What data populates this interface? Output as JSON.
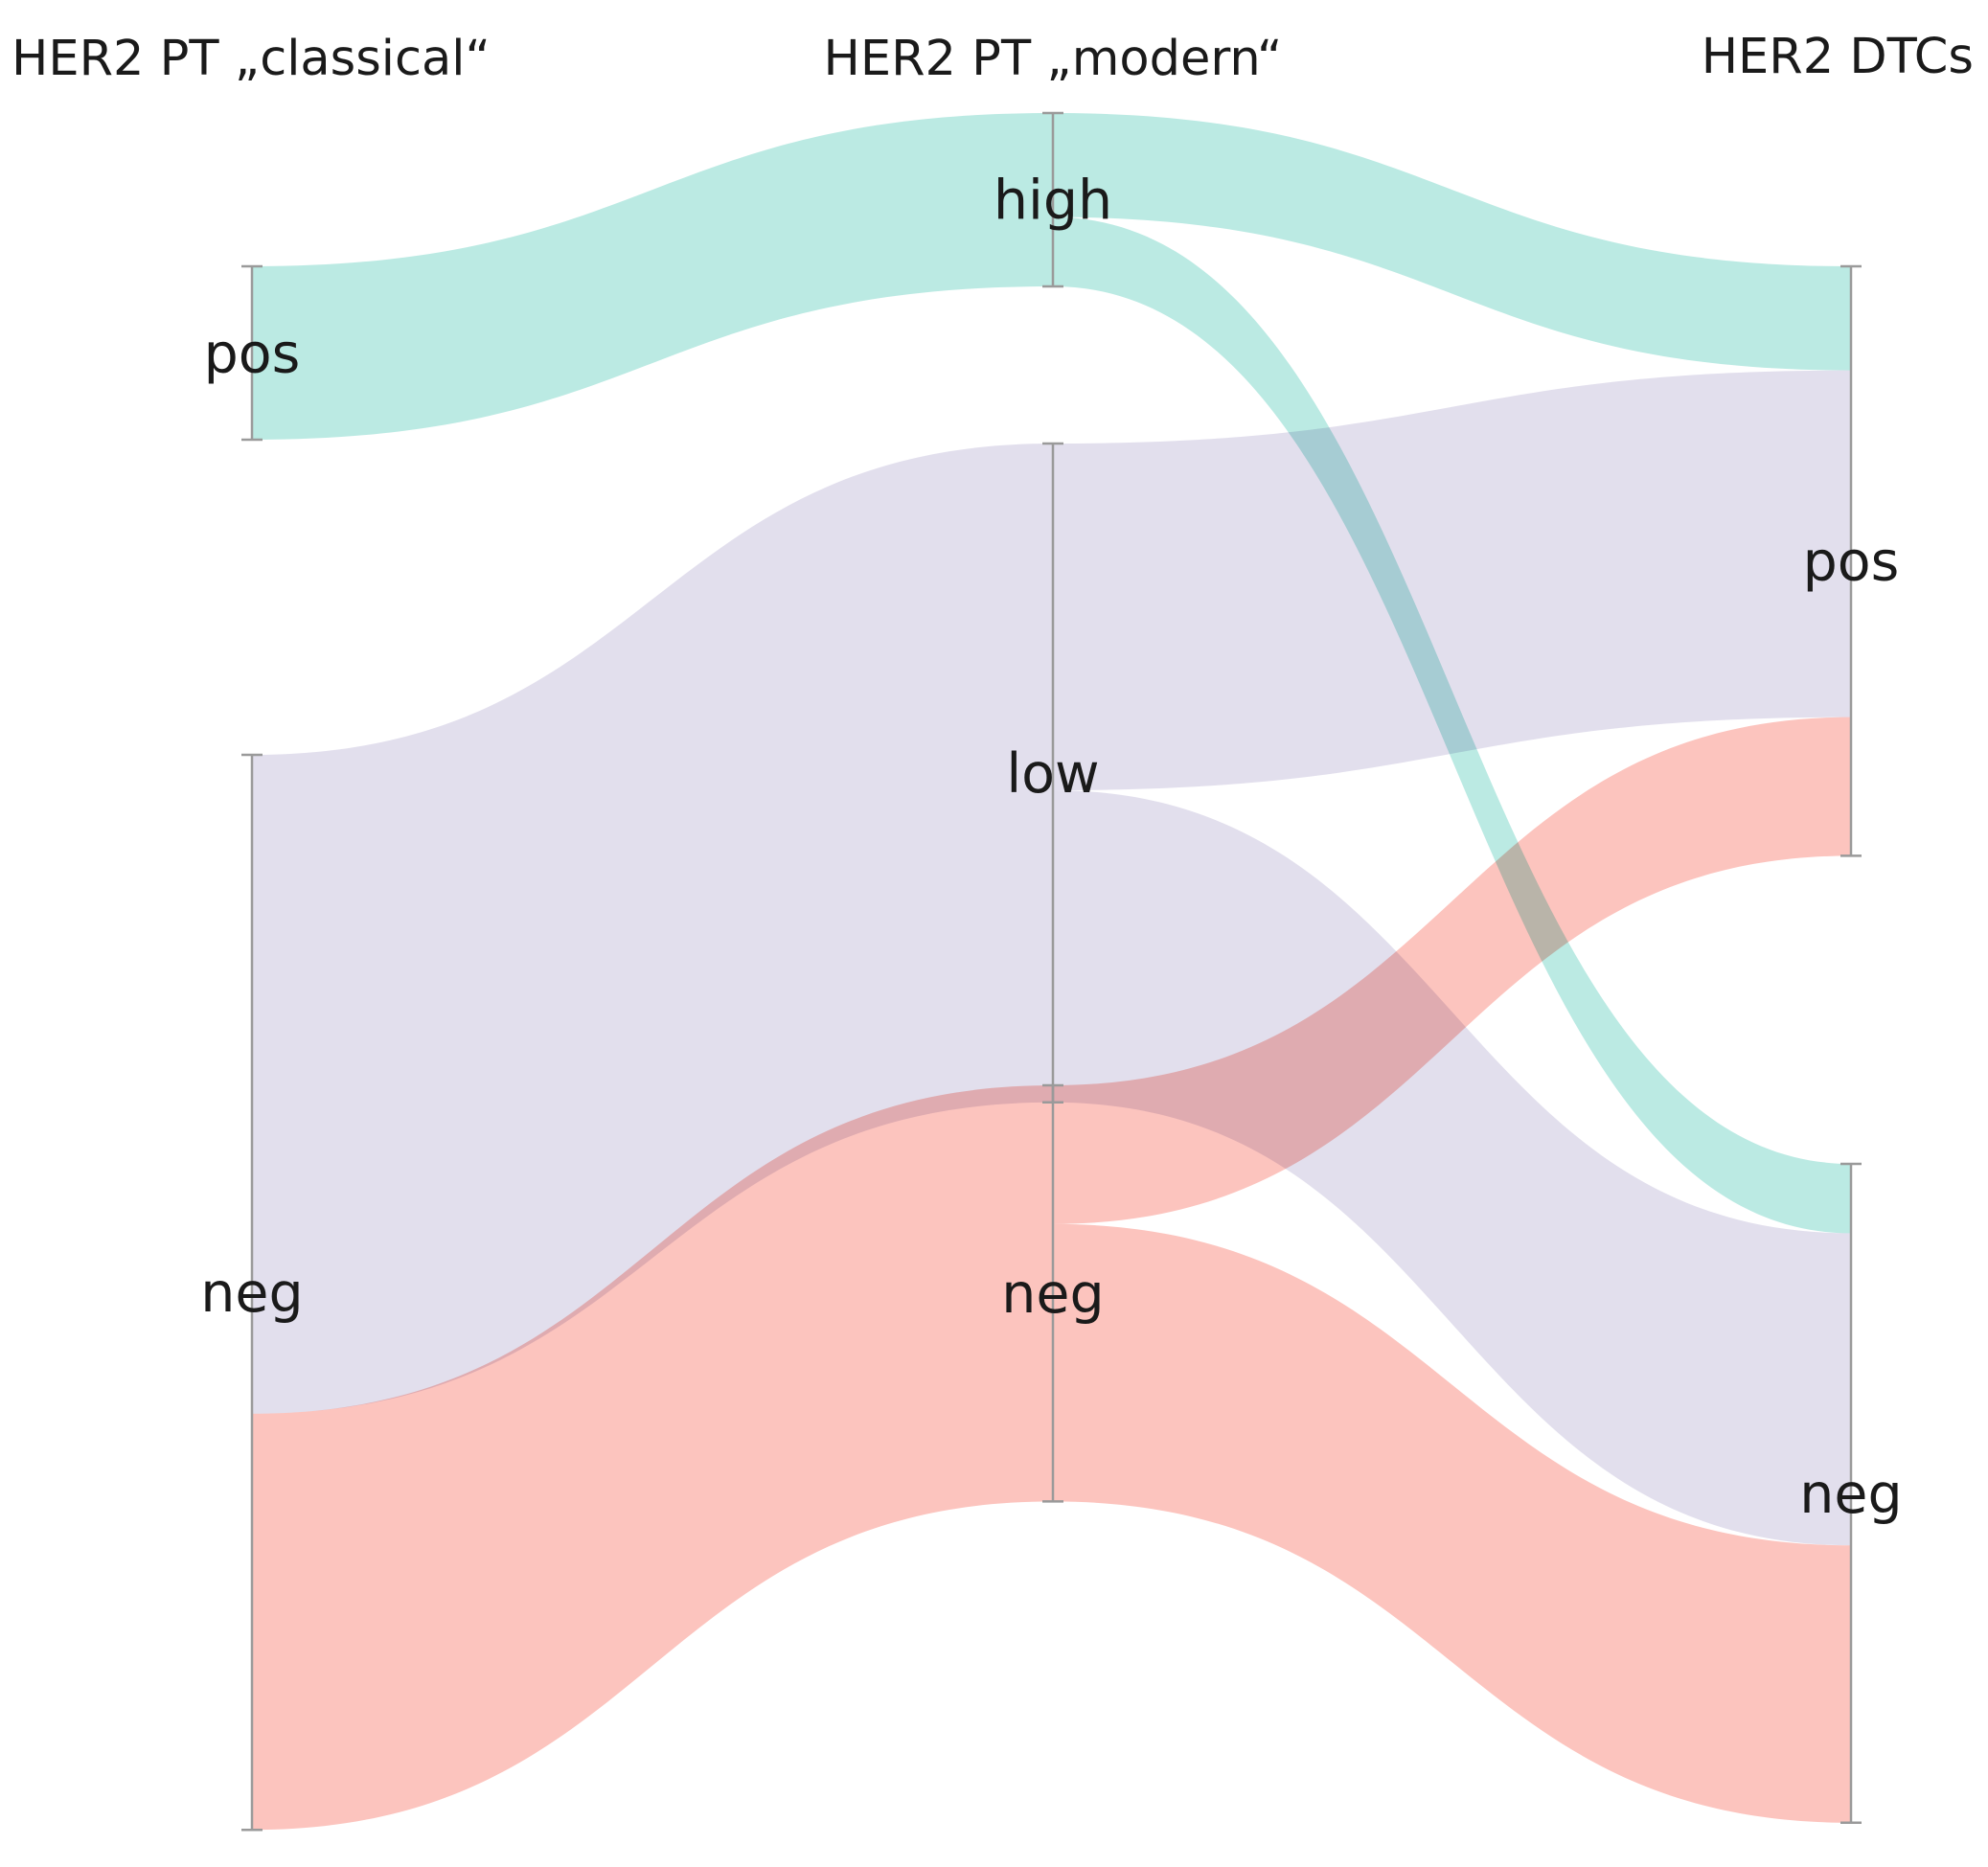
{
  "chart_data": {
    "type": "sankey",
    "stages": [
      {
        "title": "HER2 PT „classical“",
        "nodes": [
          "pos",
          "neg"
        ]
      },
      {
        "title": "HER2 PT „modern“",
        "nodes": [
          "high",
          "low",
          "neg"
        ]
      },
      {
        "title": "HER2 DTCs",
        "nodes": [
          "pos",
          "neg"
        ]
      }
    ],
    "nodes": [
      {
        "id": "c_pos",
        "label": "pos",
        "stage": 0,
        "value": 5
      },
      {
        "id": "c_neg",
        "label": "neg",
        "stage": 0,
        "value": 31
      },
      {
        "id": "m_high",
        "label": "high",
        "stage": 1,
        "value": 5
      },
      {
        "id": "m_low",
        "label": "low",
        "stage": 1,
        "value": 19
      },
      {
        "id": "m_neg",
        "label": "neg",
        "stage": 1,
        "value": 12
      },
      {
        "id": "d_pos",
        "label": "pos",
        "stage": 2,
        "value": 17
      },
      {
        "id": "d_neg",
        "label": "neg",
        "stage": 2,
        "value": 19
      }
    ],
    "links": [
      {
        "source": "c_pos",
        "target": "m_high",
        "value": 5,
        "color": "#b5e8e1"
      },
      {
        "source": "c_neg",
        "target": "m_low",
        "value": 19,
        "color": "#e0dcec"
      },
      {
        "source": "c_neg",
        "target": "m_neg",
        "value": 12,
        "color": "#fcbfb9"
      },
      {
        "source": "m_high",
        "target": "d_pos",
        "value": 3,
        "color": "#b5e8e1"
      },
      {
        "source": "m_high",
        "target": "d_neg",
        "value": 2,
        "color": "#b5e8e1"
      },
      {
        "source": "m_low",
        "target": "d_pos",
        "value": 10,
        "color": "#e0dcec"
      },
      {
        "source": "m_low",
        "target": "d_neg",
        "value": 9,
        "color": "#e0dcec"
      },
      {
        "source": "m_neg",
        "target": "d_pos",
        "value": 4,
        "color": "#fcbfb9"
      },
      {
        "source": "m_neg",
        "target": "d_neg",
        "value": 8,
        "color": "#fcbfb9"
      }
    ],
    "colors": {
      "high": "#b5e8e1",
      "low": "#e0dcec",
      "neg": "#fcbfb9"
    }
  }
}
